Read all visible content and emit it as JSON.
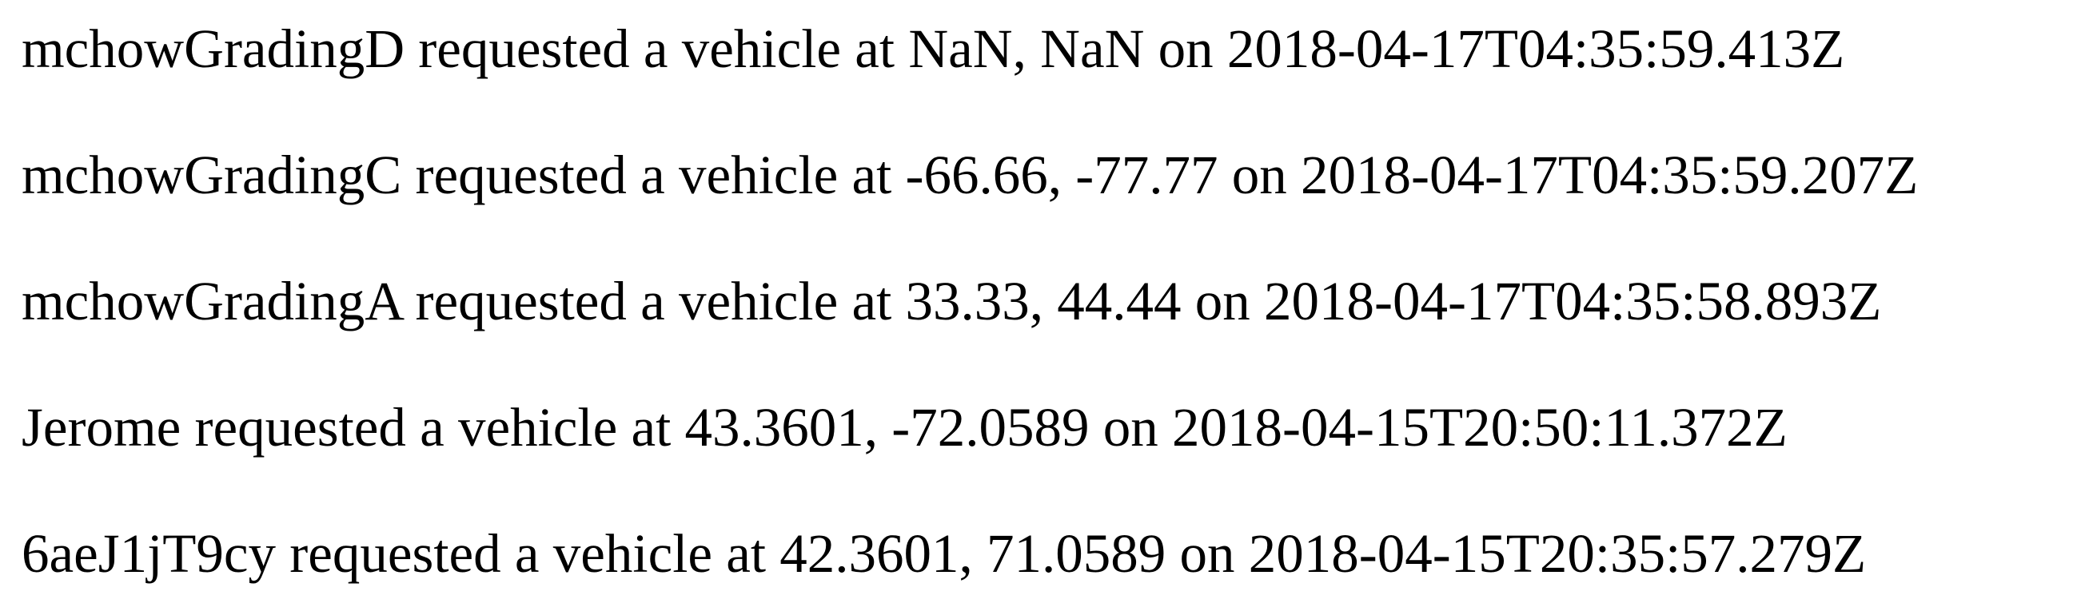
{
  "requests": [
    {
      "text": "mchowGradingD requested a vehicle at NaN, NaN on 2018-04-17T04:35:59.413Z"
    },
    {
      "text": "mchowGradingC requested a vehicle at -66.66, -77.77 on 2018-04-17T04:35:59.207Z"
    },
    {
      "text": "mchowGradingA requested a vehicle at 33.33, 44.44 on 2018-04-17T04:35:58.893Z"
    },
    {
      "text": "Jerome requested a vehicle at 43.3601, -72.0589 on 2018-04-15T20:50:11.372Z"
    },
    {
      "text": "6aeJ1jT9cy requested a vehicle at 42.3601, 71.0589 on 2018-04-15T20:35:57.279Z"
    }
  ]
}
